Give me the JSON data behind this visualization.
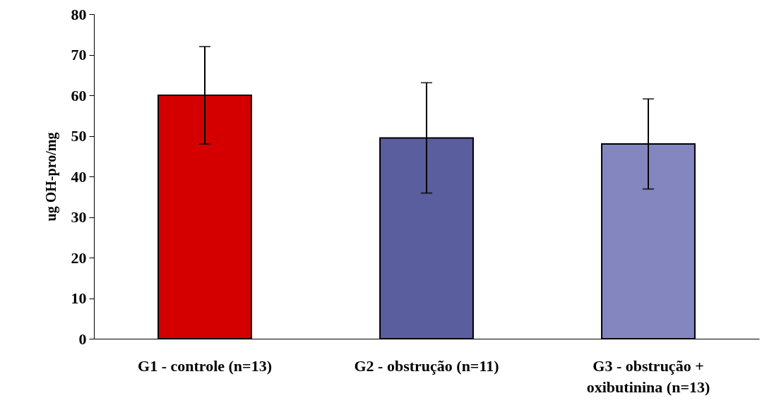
{
  "chart_data": {
    "type": "bar",
    "ylabel": "ug OH-pro/mg",
    "categories": [
      "G1 - controle (n=13)",
      "G2 - obstrução (n=11)",
      "G3 - obstrução + oxibutinina (n=13)"
    ],
    "values": [
      60,
      49.5,
      48
    ],
    "errors": [
      12,
      13.6,
      11.1
    ],
    "colors": [
      "#d40000",
      "#5a5d9e",
      "#8486c0"
    ],
    "ylim": [
      0,
      80
    ],
    "yticks": [
      0,
      10,
      20,
      30,
      40,
      50,
      60,
      70,
      80
    ],
    "grid": false
  }
}
